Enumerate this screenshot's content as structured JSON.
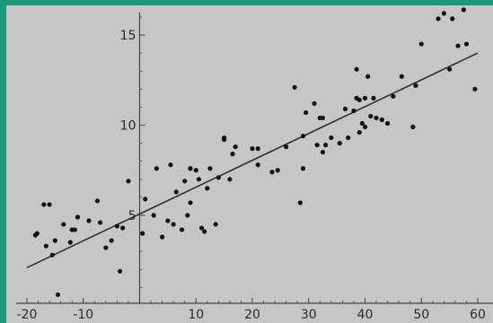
{
  "chart_data": {
    "type": "scatter",
    "title": "",
    "xlabel": "",
    "ylabel": "",
    "xlim": [
      -21,
      61
    ],
    "ylim": [
      0.3,
      17.0
    ],
    "x_ticks": [
      -20,
      -10,
      10,
      20,
      30,
      40,
      50,
      60
    ],
    "y_ticks": [
      5,
      10,
      15
    ],
    "x_tick_labels": [
      "-20",
      "-10",
      "10",
      "20",
      "30",
      "40",
      "50",
      "60"
    ],
    "y_tick_labels": [
      "5",
      "10",
      "15"
    ],
    "grid": false,
    "legend": "none",
    "colors": {
      "background": "#c6c6c6",
      "frame": "#1a9a7a",
      "points": "#111111",
      "line": "#333333",
      "axes": "#444444"
    },
    "fit_line": {
      "x": [
        -20,
        60
      ],
      "y": [
        2.1,
        14.0
      ]
    },
    "points": [
      {
        "x": -18.5,
        "y": 3.9
      },
      {
        "x": -18.2,
        "y": 4.0
      },
      {
        "x": -17.0,
        "y": 5.6
      },
      {
        "x": -16.6,
        "y": 3.3
      },
      {
        "x": -16.0,
        "y": 5.6
      },
      {
        "x": -15.5,
        "y": 2.8
      },
      {
        "x": -15.0,
        "y": 3.6
      },
      {
        "x": -13.5,
        "y": 4.5
      },
      {
        "x": -12.3,
        "y": 3.5
      },
      {
        "x": -12.0,
        "y": 4.2
      },
      {
        "x": -11.5,
        "y": 4.2
      },
      {
        "x": -11.0,
        "y": 4.9
      },
      {
        "x": -9.0,
        "y": 4.7
      },
      {
        "x": -7.5,
        "y": 5.8
      },
      {
        "x": -7.0,
        "y": 4.6
      },
      {
        "x": -6.0,
        "y": 3.2
      },
      {
        "x": -5.0,
        "y": 3.6
      },
      {
        "x": -4.0,
        "y": 4.4
      },
      {
        "x": -3.5,
        "y": 1.9
      },
      {
        "x": -3.0,
        "y": 4.3
      },
      {
        "x": -2.0,
        "y": 6.9
      },
      {
        "x": 0.5,
        "y": 4.0
      },
      {
        "x": 1.0,
        "y": 5.9
      },
      {
        "x": 2.5,
        "y": 5.0
      },
      {
        "x": 3.0,
        "y": 7.6
      },
      {
        "x": 4.0,
        "y": 3.8
      },
      {
        "x": 5.0,
        "y": 4.7
      },
      {
        "x": 5.5,
        "y": 7.8
      },
      {
        "x": 6.0,
        "y": 4.5
      },
      {
        "x": 6.5,
        "y": 6.3
      },
      {
        "x": 7.5,
        "y": 4.2
      },
      {
        "x": 8.0,
        "y": 6.9
      },
      {
        "x": 8.5,
        "y": 5.0
      },
      {
        "x": 9.0,
        "y": 5.7
      },
      {
        "x": 9.0,
        "y": 7.6
      },
      {
        "x": 10.0,
        "y": 7.5
      },
      {
        "x": 10.5,
        "y": 7.0
      },
      {
        "x": 11.0,
        "y": 4.3
      },
      {
        "x": 11.5,
        "y": 4.1
      },
      {
        "x": 12.0,
        "y": 6.5
      },
      {
        "x": 12.5,
        "y": 7.6
      },
      {
        "x": 13.5,
        "y": 4.5
      },
      {
        "x": 14.0,
        "y": 7.1
      },
      {
        "x": 15.0,
        "y": 9.2
      },
      {
        "x": 15.0,
        "y": 9.3
      },
      {
        "x": 16.0,
        "y": 7.0
      },
      {
        "x": 16.5,
        "y": 8.4
      },
      {
        "x": 17.0,
        "y": 8.8
      },
      {
        "x": 20.0,
        "y": 8.7
      },
      {
        "x": 21.0,
        "y": 8.7
      },
      {
        "x": 21.0,
        "y": 7.8
      },
      {
        "x": 23.5,
        "y": 7.4
      },
      {
        "x": 24.5,
        "y": 7.5
      },
      {
        "x": 26.0,
        "y": 8.8
      },
      {
        "x": 27.5,
        "y": 12.1
      },
      {
        "x": 28.5,
        "y": 5.7
      },
      {
        "x": 29.0,
        "y": 9.4
      },
      {
        "x": 29.5,
        "y": 10.7
      },
      {
        "x": 29.0,
        "y": 7.6
      },
      {
        "x": 31.0,
        "y": 11.2
      },
      {
        "x": 31.5,
        "y": 8.9
      },
      {
        "x": 32.0,
        "y": 10.4
      },
      {
        "x": 32.5,
        "y": 8.5
      },
      {
        "x": 32.5,
        "y": 10.4
      },
      {
        "x": 33.0,
        "y": 8.9
      },
      {
        "x": 34.0,
        "y": 9.3
      },
      {
        "x": 35.5,
        "y": 9.0
      },
      {
        "x": 36.5,
        "y": 10.9
      },
      {
        "x": 37.0,
        "y": 9.3
      },
      {
        "x": 38.0,
        "y": 10.8
      },
      {
        "x": 38.5,
        "y": 11.5
      },
      {
        "x": 38.5,
        "y": 13.1
      },
      {
        "x": 39.0,
        "y": 11.4
      },
      {
        "x": 39.0,
        "y": 9.6
      },
      {
        "x": 39.5,
        "y": 10.1
      },
      {
        "x": 40.0,
        "y": 11.5
      },
      {
        "x": 40.0,
        "y": 9.9
      },
      {
        "x": 40.5,
        "y": 12.7
      },
      {
        "x": 41.0,
        "y": 10.5
      },
      {
        "x": 41.5,
        "y": 11.5
      },
      {
        "x": 42.0,
        "y": 10.4
      },
      {
        "x": 43.0,
        "y": 10.3
      },
      {
        "x": 43.0,
        "y": 10.3
      },
      {
        "x": 44.0,
        "y": 10.1
      },
      {
        "x": 45.0,
        "y": 11.6
      },
      {
        "x": 46.5,
        "y": 12.7
      },
      {
        "x": 48.5,
        "y": 9.9
      },
      {
        "x": 49.0,
        "y": 12.2
      },
      {
        "x": 50.0,
        "y": 14.5
      },
      {
        "x": 53.0,
        "y": 15.9
      },
      {
        "x": 54.0,
        "y": 16.2
      },
      {
        "x": 55.0,
        "y": 13.1
      },
      {
        "x": 55.5,
        "y": 15.9
      },
      {
        "x": 56.5,
        "y": 14.4
      },
      {
        "x": 57.5,
        "y": 16.4
      },
      {
        "x": 58.0,
        "y": 14.5
      },
      {
        "x": 59.5,
        "y": 12.0
      },
      {
        "x": -14.5,
        "y": 0.6
      }
    ]
  }
}
